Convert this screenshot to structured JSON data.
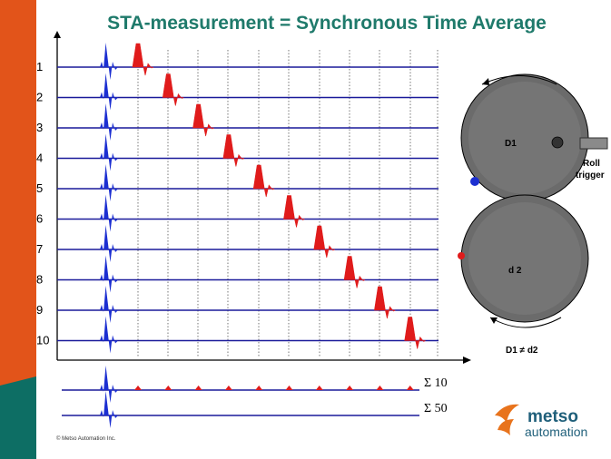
{
  "title": "STA-measurement  = Synchronous  Time Average",
  "row_labels": [
    "1",
    "2",
    "3",
    "4",
    "5",
    "6",
    "7",
    "8",
    "9",
    "10"
  ],
  "sum_labels": [
    "Σ 10",
    "Σ 50"
  ],
  "rolls": {
    "top_label": "D1",
    "bottom_label": "d 2",
    "trigger_label_line1": "Roll",
    "trigger_label_line2": "trigger",
    "inequality": "D1 ≠ d2"
  },
  "copyright": "© Metso Automation Inc.",
  "logo": {
    "brand": "metso",
    "sub": "automation"
  },
  "colors": {
    "accent_title": "#1f7a6b",
    "wave_blue": "#1c2fd1",
    "wave_red": "#e01b1b",
    "line_blue": "#1a1a9a",
    "logo_orange": "#e8731c",
    "logo_teal": "#1f5f7a"
  }
}
